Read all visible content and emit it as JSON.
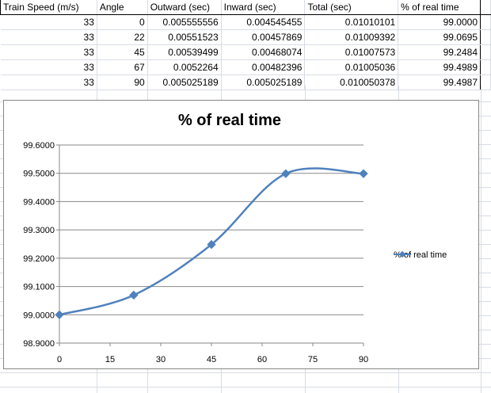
{
  "sheet": {
    "columns": [
      "Train Speed (m/s)",
      "Angle",
      "Outward (sec)",
      "Inward (sec)",
      "Total (sec)",
      "% of real time"
    ],
    "rows": [
      [
        "33",
        "0",
        "0.005555556",
        "0.004545455",
        "0.01010101",
        "99.0000"
      ],
      [
        "33",
        "22",
        "0.00551523",
        "0.00457869",
        "0.01009392",
        "99.0695"
      ],
      [
        "33",
        "45",
        "0.00539499",
        "0.00468074",
        "0.01007573",
        "99.2484"
      ],
      [
        "33",
        "67",
        "0.0052264",
        "0.00482396",
        "0.01005036",
        "99.4989"
      ],
      [
        "33",
        "90",
        "0.005025189",
        "0.005025189",
        "0.010050378",
        "99.4987"
      ]
    ]
  },
  "chart_data": {
    "type": "line",
    "title": "% of real time",
    "xlabel": "",
    "ylabel": "",
    "xlim": [
      0,
      90
    ],
    "ylim": [
      98.9,
      99.6
    ],
    "x_ticks": [
      "0",
      "15",
      "30",
      "45",
      "60",
      "75",
      "90"
    ],
    "y_ticks": [
      "98.9000",
      "99.0000",
      "99.1000",
      "99.2000",
      "99.3000",
      "99.4000",
      "99.5000",
      "99.6000"
    ],
    "x_tick_values": [
      0,
      15,
      30,
      45,
      60,
      75,
      90
    ],
    "y_tick_values": [
      98.9,
      99.0,
      99.1,
      99.2,
      99.3,
      99.4,
      99.5,
      99.6
    ],
    "grid": true,
    "legend_position": "right",
    "series": [
      {
        "name": "% of real time",
        "color": "#4f81bd",
        "x": [
          0,
          22,
          45,
          67,
          90
        ],
        "y": [
          99.0,
          99.0695,
          99.2484,
          99.4989,
          99.4987
        ]
      }
    ]
  }
}
